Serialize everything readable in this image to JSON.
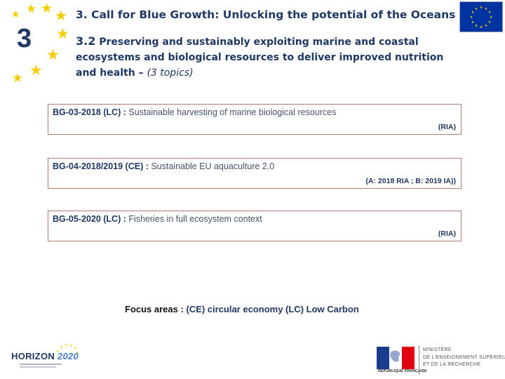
{
  "header": {
    "section_number": "3",
    "title": "3. Call for Blue Growth: Unlocking the potential of the Oceans",
    "subtitle_num": "3.2",
    "subtitle_text": " Preserving and sustainably exploiting marine and coastal ecosystems and biological resources to deliver improved nutrition and health",
    "subtitle_dash": " – ",
    "subtitle_topics": "(3 topics)"
  },
  "topics": [
    {
      "code": "BG-03-2018 (LC) :",
      "title": " Sustainable harvesting of marine biological resources",
      "action": "(RIA)"
    },
    {
      "code": "BG-04-2018/2019 (CE) :",
      "title": " Sustainable EU aquaculture 2.0",
      "action": "(A: 2018 RIA ; B: 2019 IA))"
    },
    {
      "code": "BG-05-2020 (LC) :",
      "title": " Fisheries in full ecosystem context",
      "action": "(RIA)"
    }
  ],
  "focus": {
    "label": "Focus areas : ",
    "text": "(CE) circular economy (LC) Low Carbon"
  },
  "logos": {
    "horizon_word": "HORIZON ",
    "horizon_year": "2020",
    "ministry_lines": [
      "MINISTÈRE",
      "DE L'ENSEIGNEMENT SUPÉRIEUR",
      "ET DE LA RECHERCHE"
    ],
    "republic": "RÉPUBLIQUE FRANÇAISE"
  },
  "colors": {
    "title_blue": "#1f3864",
    "star_yellow": "#f5cd00",
    "eu_blue": "#0033a0",
    "box_border": "#b08070"
  },
  "icons": [
    "star-icon",
    "eu-flag-icon",
    "horizon-2020-logo",
    "marianne-logo"
  ]
}
